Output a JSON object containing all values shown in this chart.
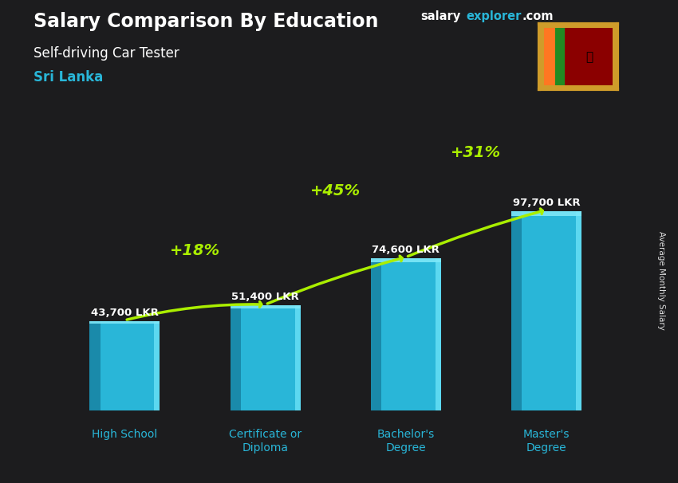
{
  "title1": "Salary Comparison By Education",
  "title2": "Self-driving Car Tester",
  "title3": "Sri Lanka",
  "ylabel": "Average Monthly Salary",
  "categories": [
    "High School",
    "Certificate or\nDiploma",
    "Bachelor's\nDegree",
    "Master's\nDegree"
  ],
  "values": [
    43700,
    51400,
    74600,
    97700
  ],
  "value_labels": [
    "43,700 LKR",
    "51,400 LKR",
    "74,600 LKR",
    "97,700 LKR"
  ],
  "pct_labels": [
    "+18%",
    "+45%",
    "+31%"
  ],
  "bar_color_main": "#29b6d8",
  "bar_color_left": "#1a8aaa",
  "bar_color_right": "#5cd8f0",
  "bar_color_top": "#7ee8f8",
  "bg_color": "#1c1c1e",
  "title_color": "#ffffff",
  "subtitle_color": "#ffffff",
  "country_color": "#29b6d8",
  "value_label_color": "#ffffff",
  "pct_color": "#aaee00",
  "arrow_color": "#aaee00",
  "xlabel_color": "#29b6d8",
  "brand_color_salary": "#ffffff",
  "brand_color_explorer": "#29b6d8",
  "ylim": [
    0,
    130000
  ],
  "bar_width": 0.5,
  "x_positions": [
    0,
    1,
    2,
    3
  ]
}
